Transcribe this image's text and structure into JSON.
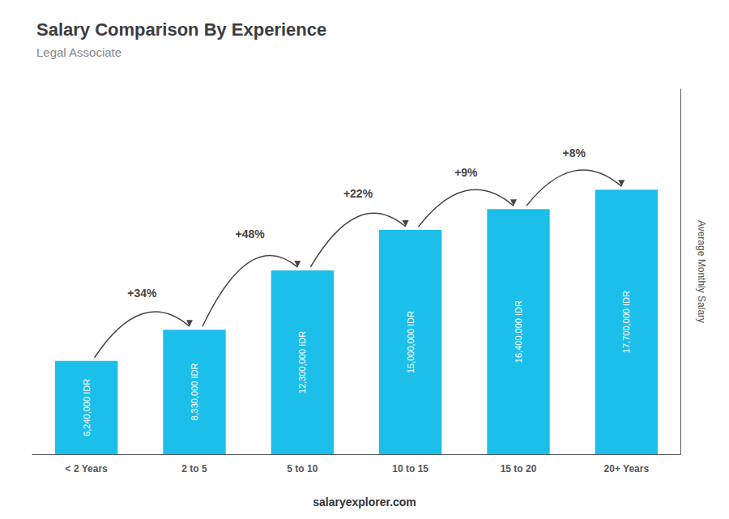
{
  "chart_data": {
    "type": "bar",
    "title": "Salary Comparison By Experience",
    "subtitle": "Legal Associate",
    "ylabel": "Average Monthly Salary",
    "categories": [
      "< 2 Years",
      "2 to 5",
      "5 to 10",
      "10 to 15",
      "15 to 20",
      "20+ Years"
    ],
    "values": [
      6240000,
      8330000,
      12300000,
      15000000,
      16400000,
      17700000
    ],
    "value_labels": [
      "6,240,000 IDR",
      "8,330,000 IDR",
      "12,300,000 IDR",
      "15,000,000 IDR",
      "16,400,000 IDR",
      "17,700,000 IDR"
    ],
    "data_labels": true,
    "annotations": [
      "+34%",
      "+48%",
      "+22%",
      "+9%",
      "+8%"
    ],
    "footer": "salaryexplorer.com",
    "color": "#1BBFEA",
    "ylim": [
      0,
      24426000
    ],
    "tick_labels": "x",
    "grid": false
  }
}
